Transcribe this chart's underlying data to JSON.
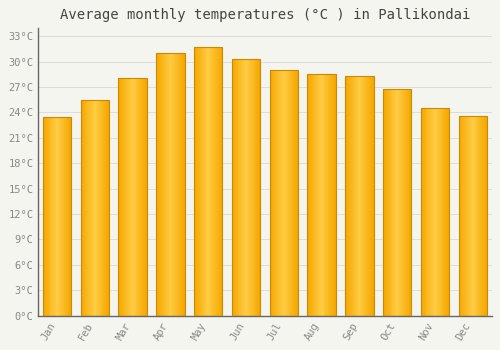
{
  "title": "Average monthly temperatures (°C ) in Pallikondai",
  "months": [
    "Jan",
    "Feb",
    "Mar",
    "Apr",
    "May",
    "Jun",
    "Jul",
    "Aug",
    "Sep",
    "Oct",
    "Nov",
    "Dec"
  ],
  "temperatures": [
    23.5,
    25.5,
    28.0,
    31.0,
    31.7,
    30.3,
    29.0,
    28.5,
    28.3,
    26.8,
    24.5,
    23.6
  ],
  "bar_color_center": "#FFCC44",
  "bar_color_edge": "#F5A800",
  "bar_outline_color": "#CC8800",
  "background_color": "#F5F5F0",
  "plot_bg_color": "#F5F5F0",
  "grid_color": "#DDDDDD",
  "title_color": "#444444",
  "tick_label_color": "#888888",
  "axis_line_color": "#666666",
  "ylim": [
    0,
    34
  ],
  "yticks": [
    0,
    3,
    6,
    9,
    12,
    15,
    18,
    21,
    24,
    27,
    30,
    33
  ],
  "title_fontsize": 10,
  "tick_fontsize": 7.5,
  "bar_width": 0.75
}
